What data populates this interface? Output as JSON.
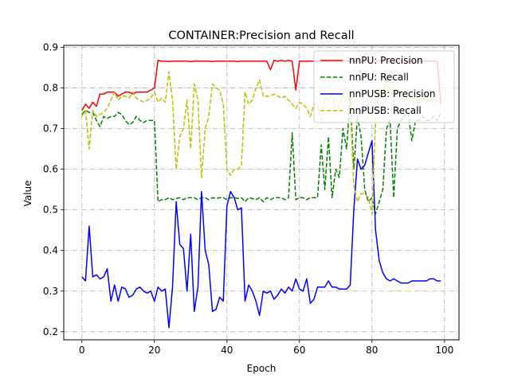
{
  "chart_data": {
    "type": "line",
    "title": "CONTAINER:Precision and Recall",
    "xlabel": "Epoch",
    "ylabel": "Value",
    "xlim": [
      -5,
      104
    ],
    "ylim": [
      0.18,
      0.905
    ],
    "xticks": [
      0,
      20,
      40,
      60,
      80,
      100
    ],
    "yticks": [
      0.2,
      0.3,
      0.4,
      0.5,
      0.6,
      0.7,
      0.8,
      0.9
    ],
    "grid": true,
    "legend_position": "top-right",
    "series": [
      {
        "name": "nnPU: Precision",
        "color": "#ff0000",
        "dash": "solid",
        "x": [
          0,
          1,
          2,
          3,
          4,
          5,
          6,
          7,
          8,
          9,
          10,
          11,
          12,
          13,
          14,
          15,
          16,
          17,
          18,
          19,
          20,
          21,
          22,
          23,
          24,
          25,
          26,
          27,
          28,
          29,
          30,
          31,
          32,
          33,
          34,
          35,
          36,
          37,
          38,
          39,
          40,
          41,
          42,
          43,
          44,
          45,
          46,
          47,
          48,
          49,
          50,
          51,
          52,
          53,
          54,
          55,
          56,
          57,
          58,
          59,
          60,
          61,
          62,
          63,
          64,
          65,
          66,
          67,
          68,
          69,
          70,
          71,
          72,
          73,
          74,
          75,
          76,
          77,
          78,
          79,
          80,
          81,
          82,
          83,
          84,
          85,
          86,
          87,
          88,
          89,
          90,
          91,
          92,
          93,
          94,
          95,
          96,
          97,
          98,
          99
        ],
        "values": [
          0.745,
          0.76,
          0.75,
          0.765,
          0.755,
          0.785,
          0.785,
          0.79,
          0.79,
          0.79,
          0.78,
          0.785,
          0.79,
          0.79,
          0.785,
          0.79,
          0.79,
          0.79,
          0.79,
          0.795,
          0.8,
          0.868,
          0.866,
          0.866,
          0.865,
          0.866,
          0.866,
          0.866,
          0.866,
          0.866,
          0.865,
          0.866,
          0.866,
          0.866,
          0.866,
          0.866,
          0.865,
          0.866,
          0.866,
          0.866,
          0.866,
          0.866,
          0.866,
          0.865,
          0.866,
          0.866,
          0.866,
          0.866,
          0.866,
          0.866,
          0.866,
          0.866,
          0.845,
          0.868,
          0.866,
          0.868,
          0.866,
          0.868,
          0.866,
          0.795,
          0.866,
          0.866,
          0.866,
          0.866,
          0.866,
          0.866,
          0.866,
          0.866,
          0.866,
          0.866,
          0.866,
          0.866,
          0.866,
          0.866,
          0.866,
          0.866,
          0.866,
          0.866,
          0.866,
          0.866,
          0.866,
          0.866,
          0.866,
          0.866,
          0.866,
          0.866,
          0.866,
          0.866,
          0.866,
          0.866,
          0.866,
          0.866,
          0.866,
          0.866,
          0.866,
          0.866,
          0.866,
          0.866,
          0.866,
          0.76
        ]
      },
      {
        "name": "nnPU: Recall",
        "color": "#008000",
        "dash": "dashed",
        "x": [
          0,
          1,
          2,
          3,
          4,
          5,
          6,
          7,
          8,
          9,
          10,
          11,
          12,
          13,
          14,
          15,
          16,
          17,
          18,
          19,
          20,
          21,
          22,
          23,
          24,
          25,
          26,
          27,
          28,
          29,
          30,
          31,
          32,
          33,
          34,
          35,
          36,
          37,
          38,
          39,
          40,
          41,
          42,
          43,
          44,
          45,
          46,
          47,
          48,
          49,
          50,
          51,
          52,
          53,
          54,
          55,
          56,
          57,
          58,
          59,
          60,
          61,
          62,
          63,
          64,
          65,
          66,
          67,
          68,
          69,
          70,
          71,
          72,
          73,
          74,
          75,
          76,
          77,
          78,
          79,
          80,
          81,
          82,
          83,
          84,
          85,
          86,
          87,
          88,
          89,
          90,
          91,
          92,
          93,
          94,
          95,
          96,
          97,
          98,
          99
        ],
        "values": [
          0.735,
          0.745,
          0.74,
          0.74,
          0.72,
          0.705,
          0.73,
          0.725,
          0.73,
          0.73,
          0.74,
          0.735,
          0.72,
          0.71,
          0.715,
          0.73,
          0.72,
          0.715,
          0.72,
          0.72,
          0.72,
          0.52,
          0.525,
          0.525,
          0.53,
          0.525,
          0.528,
          0.53,
          0.525,
          0.53,
          0.53,
          0.53,
          0.525,
          0.53,
          0.53,
          0.525,
          0.53,
          0.528,
          0.53,
          0.53,
          0.525,
          0.53,
          0.53,
          0.528,
          0.53,
          0.52,
          0.53,
          0.528,
          0.525,
          0.53,
          0.52,
          0.53,
          0.525,
          0.53,
          0.53,
          0.53,
          0.525,
          0.53,
          0.69,
          0.525,
          0.53,
          0.53,
          0.525,
          0.53,
          0.53,
          0.53,
          0.66,
          0.55,
          0.68,
          0.53,
          0.6,
          0.58,
          0.7,
          0.65,
          0.78,
          0.6,
          0.73,
          0.68,
          0.55,
          0.52,
          0.53,
          0.49,
          0.52,
          0.55,
          0.7,
          0.72,
          0.53,
          0.7,
          0.72,
          0.73,
          0.74,
          0.67,
          0.72,
          0.72,
          0.73,
          0.72,
          0.72,
          0.73,
          0.72,
          0.74
        ]
      },
      {
        "name": "nnPUSB: Precision",
        "color": "#0000ff",
        "dash": "solid",
        "x": [
          0,
          1,
          2,
          3,
          4,
          5,
          6,
          7,
          8,
          9,
          10,
          11,
          12,
          13,
          14,
          15,
          16,
          17,
          18,
          19,
          20,
          21,
          22,
          23,
          24,
          25,
          26,
          27,
          28,
          29,
          30,
          31,
          32,
          33,
          34,
          35,
          36,
          37,
          38,
          39,
          40,
          41,
          42,
          43,
          44,
          45,
          46,
          47,
          48,
          49,
          50,
          51,
          52,
          53,
          54,
          55,
          56,
          57,
          58,
          59,
          60,
          61,
          62,
          63,
          64,
          65,
          66,
          67,
          68,
          69,
          70,
          71,
          72,
          73,
          74,
          75,
          76,
          77,
          78,
          79,
          80,
          81,
          82,
          83,
          84,
          85,
          86,
          87,
          88,
          89,
          90,
          91,
          92,
          93,
          94,
          95,
          96,
          97,
          98,
          99
        ],
        "values": [
          0.335,
          0.325,
          0.46,
          0.335,
          0.34,
          0.33,
          0.335,
          0.355,
          0.275,
          0.315,
          0.275,
          0.31,
          0.305,
          0.285,
          0.29,
          0.305,
          0.31,
          0.3,
          0.295,
          0.3,
          0.275,
          0.31,
          0.3,
          0.305,
          0.21,
          0.31,
          0.52,
          0.415,
          0.405,
          0.3,
          0.44,
          0.25,
          0.31,
          0.545,
          0.4,
          0.365,
          0.25,
          0.255,
          0.285,
          0.275,
          0.51,
          0.545,
          0.53,
          0.5,
          0.505,
          0.275,
          0.315,
          0.3,
          0.275,
          0.24,
          0.3,
          0.295,
          0.3,
          0.28,
          0.29,
          0.305,
          0.295,
          0.31,
          0.3,
          0.33,
          0.305,
          0.3,
          0.33,
          0.27,
          0.28,
          0.31,
          0.31,
          0.31,
          0.325,
          0.31,
          0.31,
          0.305,
          0.305,
          0.305,
          0.315,
          0.5,
          0.625,
          0.6,
          0.61,
          0.64,
          0.67,
          0.45,
          0.375,
          0.345,
          0.33,
          0.325,
          0.33,
          0.325,
          0.32,
          0.32,
          0.32,
          0.325,
          0.325,
          0.325,
          0.325,
          0.325,
          0.33,
          0.33,
          0.325,
          0.325
        ]
      },
      {
        "name": "nnPUSB: Recall",
        "color": "#bfbf00",
        "dash": "dashed",
        "x": [
          0,
          1,
          2,
          3,
          4,
          5,
          6,
          7,
          8,
          9,
          10,
          11,
          12,
          13,
          14,
          15,
          16,
          17,
          18,
          19,
          20,
          21,
          22,
          23,
          24,
          25,
          26,
          27,
          28,
          29,
          30,
          31,
          32,
          33,
          34,
          35,
          36,
          37,
          38,
          39,
          40,
          41,
          42,
          43,
          44,
          45,
          46,
          47,
          48,
          49,
          50,
          51,
          52,
          53,
          54,
          55,
          56,
          57,
          58,
          59,
          60,
          61,
          62,
          63,
          64,
          65,
          66,
          67,
          68,
          69,
          70,
          71,
          72,
          73,
          74,
          75,
          76,
          77,
          78,
          79,
          80,
          81,
          82,
          83,
          84,
          85,
          86,
          87,
          88,
          89,
          90,
          91,
          92,
          93,
          94,
          95,
          96,
          97,
          98,
          99
        ],
        "values": [
          0.73,
          0.745,
          0.65,
          0.745,
          0.73,
          0.735,
          0.74,
          0.75,
          0.77,
          0.79,
          0.77,
          0.78,
          0.78,
          0.775,
          0.79,
          0.775,
          0.77,
          0.765,
          0.77,
          0.775,
          0.79,
          0.765,
          0.775,
          0.765,
          0.84,
          0.77,
          0.6,
          0.68,
          0.7,
          0.77,
          0.65,
          0.81,
          0.77,
          0.58,
          0.7,
          0.73,
          0.81,
          0.8,
          0.795,
          0.76,
          0.6,
          0.585,
          0.6,
          0.6,
          0.61,
          0.79,
          0.76,
          0.77,
          0.8,
          0.82,
          0.78,
          0.78,
          0.78,
          0.785,
          0.78,
          0.775,
          0.78,
          0.77,
          0.76,
          0.75,
          0.765,
          0.76,
          0.75,
          0.73,
          0.76,
          0.76,
          0.72,
          0.775,
          0.77,
          0.79,
          0.74,
          0.76,
          0.78,
          0.8,
          0.76,
          0.56,
          0.52,
          0.54,
          0.54,
          0.53,
          0.49,
          0.72,
          0.8,
          0.78,
          0.82,
          0.78,
          0.8,
          0.78,
          0.77,
          0.79,
          0.78,
          0.77,
          0.76,
          0.78,
          0.77,
          0.78,
          0.77,
          0.76,
          0.77,
          0.77
        ]
      }
    ]
  }
}
